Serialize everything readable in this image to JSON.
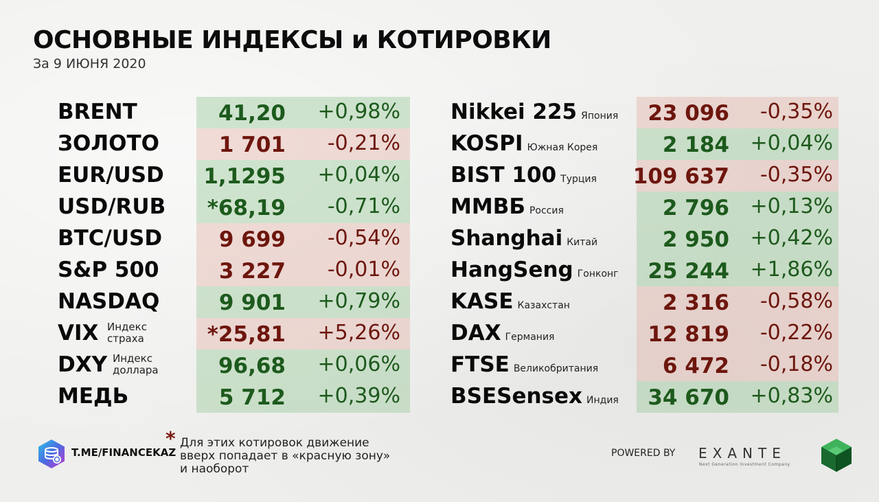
{
  "header": {
    "title": "ОСНОВНЫЕ ИНДЕКСЫ и КОТИРОВКИ",
    "date": "За 9 ИЮНЯ 2020"
  },
  "colors": {
    "up_text": "#1d5a1d",
    "down_text": "#6d160d",
    "up_band": "#b8d7b4",
    "down_band": "#e8c4bc"
  },
  "left": [
    {
      "name": "BRENT",
      "sub": "",
      "price": "41,20",
      "change": "+0,98%",
      "trend": "up"
    },
    {
      "name": "ЗОЛОТО",
      "sub": "",
      "price": "1 701",
      "change": "-0,21%",
      "trend": "down"
    },
    {
      "name": "EUR/USD",
      "sub": "",
      "price": "1,1295",
      "change": "+0,04%",
      "trend": "up"
    },
    {
      "name": "USD/RUB",
      "sub": "",
      "price": "*68,19",
      "change": "-0,71%",
      "trend": "up"
    },
    {
      "name": "BTC/USD",
      "sub": "",
      "price": "9 699",
      "change": "-0,54%",
      "trend": "down"
    },
    {
      "name": "S&P 500",
      "sub": "",
      "price": "3 227",
      "change": "-0,01%",
      "trend": "down"
    },
    {
      "name": "NASDAQ",
      "sub": "",
      "price": "9 901",
      "change": "+0,79%",
      "trend": "up"
    },
    {
      "name": "VIX",
      "sub": "Индекс страха",
      "sub_line1": "Индекс",
      "sub_line2": "страха",
      "price": "*25,81",
      "change": "+5,26%",
      "trend": "down"
    },
    {
      "name": "DXY",
      "sub": "Индекс доллара",
      "sub_line1": "Индекс",
      "sub_line2": "доллара",
      "price": "96,68",
      "change": "+0,06%",
      "trend": "up"
    },
    {
      "name": "МЕДЬ",
      "sub": "",
      "price": "5 712",
      "change": "+0,39%",
      "trend": "up"
    }
  ],
  "right": [
    {
      "name": "Nikkei 225",
      "sub": "Япония",
      "price": "23 096",
      "change": "-0,35%",
      "trend": "down"
    },
    {
      "name": "KOSPI",
      "sub": "Южная Корея",
      "price": "2 184",
      "change": "+0,04%",
      "trend": "up"
    },
    {
      "name": "BIST 100",
      "sub": "Турция",
      "price": "109 637",
      "change": "-0,35%",
      "trend": "down"
    },
    {
      "name": "ММВБ",
      "sub": "Россия",
      "price": "2 796",
      "change": "+0,13%",
      "trend": "up"
    },
    {
      "name": "Shanghai",
      "sub": "Китай",
      "price": "2 950",
      "change": "+0,42%",
      "trend": "up"
    },
    {
      "name": "HangSeng",
      "sub": "Гонконг",
      "price": "25 244",
      "change": "+1,86%",
      "trend": "up"
    },
    {
      "name": "KASE",
      "sub": "Казахстан",
      "price": "2 316",
      "change": "-0,58%",
      "trend": "down"
    },
    {
      "name": "DAX",
      "sub": "Германия",
      "price": "12 819",
      "change": "-0,22%",
      "trend": "down"
    },
    {
      "name": "FTSE",
      "sub": "Великобритания",
      "price": "6 472",
      "change": "-0,18%",
      "trend": "down"
    },
    {
      "name": "BSESensex",
      "sub": "Индия",
      "price": "34 670",
      "change": "+0,83%",
      "trend": "up"
    }
  ],
  "footer": {
    "handle": "T.ME/FINANCEKAZ",
    "asterisk": "*",
    "note_line1": "Для этих котировок движение",
    "note_line2": "вверх попадает в «красную зону»",
    "note_line3": "и наоборот",
    "powered_by": "POWERED BY",
    "brand": "EXANTE",
    "brand_tagline": "Next Generation Investment Company",
    "logo_icon": "coins-hexagon-icon",
    "brand_icon": "emerald-cube-icon"
  }
}
